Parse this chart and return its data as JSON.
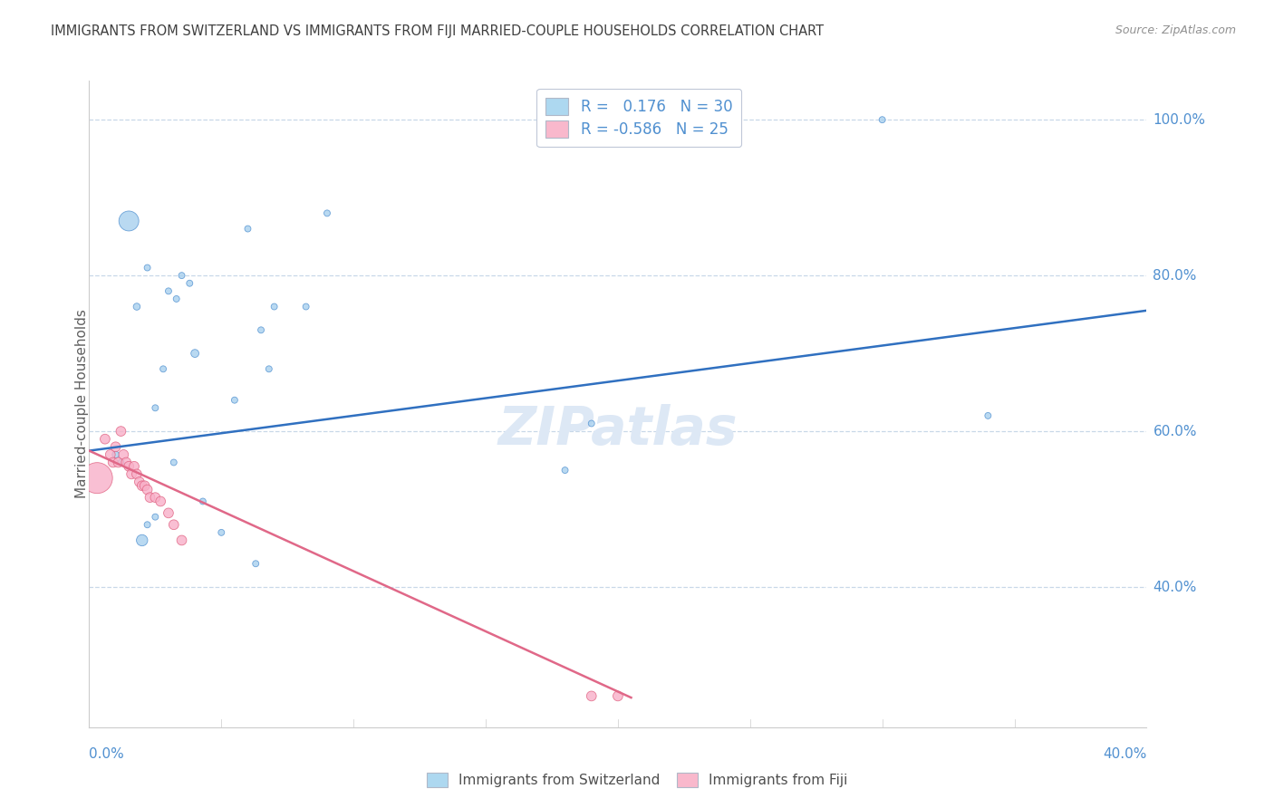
{
  "title": "IMMIGRANTS FROM SWITZERLAND VS IMMIGRANTS FROM FIJI MARRIED-COUPLE HOUSEHOLDS CORRELATION CHART",
  "source": "Source: ZipAtlas.com",
  "ylabel": "Married-couple Households",
  "legend_entries": [
    {
      "label": "R =   0.176   N = 30",
      "color": "#add8f0"
    },
    {
      "label": "R = -0.586   N = 25",
      "color": "#f9b8cc"
    }
  ],
  "legend_bottom": [
    {
      "label": "Immigrants from Switzerland",
      "color": "#add8f0"
    },
    {
      "label": "Immigrants from Fiji",
      "color": "#f9b8cc"
    }
  ],
  "swiss_scatter": {
    "x": [
      0.01,
      0.012,
      0.015,
      0.018,
      0.02,
      0.022,
      0.022,
      0.025,
      0.025,
      0.028,
      0.03,
      0.032,
      0.033,
      0.035,
      0.038,
      0.04,
      0.043,
      0.05,
      0.055,
      0.06,
      0.063,
      0.065,
      0.068,
      0.07,
      0.082,
      0.09,
      0.18,
      0.19,
      0.3,
      0.34
    ],
    "y": [
      0.57,
      0.56,
      0.87,
      0.76,
      0.46,
      0.48,
      0.81,
      0.63,
      0.49,
      0.68,
      0.78,
      0.56,
      0.77,
      0.8,
      0.79,
      0.7,
      0.51,
      0.47,
      0.64,
      0.86,
      0.43,
      0.73,
      0.68,
      0.76,
      0.76,
      0.88,
      0.55,
      0.61,
      1.0,
      0.62
    ],
    "size": [
      30,
      25,
      250,
      30,
      80,
      25,
      25,
      25,
      25,
      25,
      25,
      25,
      25,
      25,
      25,
      40,
      25,
      25,
      25,
      25,
      25,
      25,
      25,
      25,
      25,
      25,
      25,
      25,
      25,
      25
    ]
  },
  "fiji_scatter": {
    "x": [
      0.003,
      0.006,
      0.008,
      0.009,
      0.01,
      0.011,
      0.012,
      0.013,
      0.014,
      0.015,
      0.016,
      0.017,
      0.018,
      0.019,
      0.02,
      0.021,
      0.022,
      0.023,
      0.025,
      0.027,
      0.03,
      0.032,
      0.035,
      0.19,
      0.2
    ],
    "y": [
      0.54,
      0.59,
      0.57,
      0.56,
      0.58,
      0.56,
      0.6,
      0.57,
      0.56,
      0.555,
      0.545,
      0.555,
      0.545,
      0.535,
      0.53,
      0.53,
      0.525,
      0.515,
      0.515,
      0.51,
      0.495,
      0.48,
      0.46,
      0.26,
      0.26
    ],
    "size": [
      600,
      60,
      60,
      60,
      60,
      60,
      60,
      60,
      60,
      60,
      60,
      60,
      60,
      60,
      60,
      60,
      60,
      60,
      60,
      60,
      60,
      60,
      60,
      60,
      60
    ]
  },
  "swiss_line": {
    "x": [
      0.0,
      0.4
    ],
    "y": [
      0.575,
      0.755
    ]
  },
  "fiji_line": {
    "x": [
      0.0,
      0.205
    ],
    "y": [
      0.575,
      0.258
    ]
  },
  "xlim": [
    0.0,
    0.4
  ],
  "ylim": [
    0.22,
    1.05
  ],
  "ytick_vals": [
    1.0,
    0.8,
    0.6,
    0.4
  ],
  "ytick_labels": [
    "100.0%",
    "80.0%",
    "60.0%",
    "40.0%"
  ],
  "swiss_color": "#a8d0ee",
  "fiji_color": "#f8b0c8",
  "swiss_edge_color": "#5090d0",
  "fiji_edge_color": "#e06080",
  "swiss_line_color": "#3070c0",
  "fiji_line_color": "#e06888",
  "bg_color": "#ffffff",
  "title_color": "#404040",
  "axis_label_color": "#5090d0",
  "grid_color": "#c8d8e8",
  "watermark_color": "#dde8f5"
}
